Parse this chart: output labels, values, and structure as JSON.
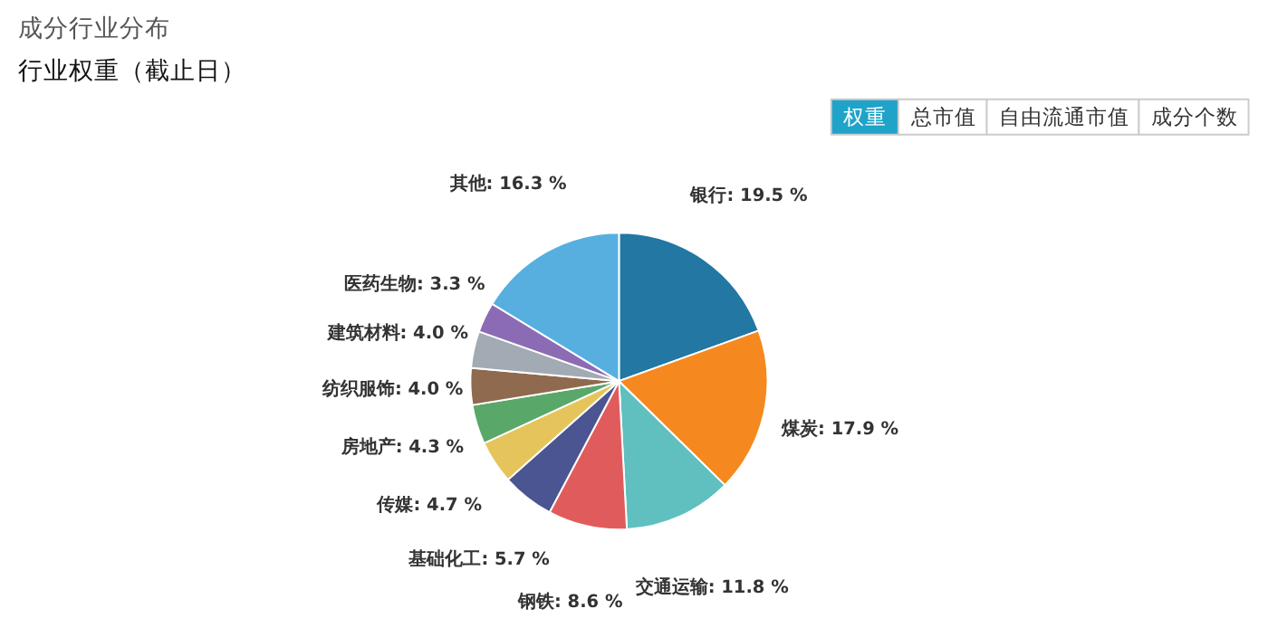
{
  "chart_data": {
    "type": "pie",
    "title": "成分行业分布",
    "subtitle": "行业权重（截止日）",
    "categories": [
      "银行",
      "煤炭",
      "交通运输",
      "钢铁",
      "基础化工",
      "传媒",
      "房地产",
      "纺织服饰",
      "建筑材料",
      "医药生物",
      "其他"
    ],
    "values": [
      19.5,
      17.9,
      11.8,
      8.6,
      5.7,
      4.7,
      4.3,
      4.0,
      4.0,
      3.3,
      16.3
    ],
    "value_labels": [
      "19.5 %",
      "17.9 %",
      "11.8 %",
      "8.6 %",
      "5.7 %",
      "4.7 %",
      "4.3 %",
      "4.0 %",
      "4.0 %",
      "3.3 %",
      "16.3 %"
    ],
    "colors": [
      "#2277a3",
      "#f5891f",
      "#5fc0bf",
      "#e05c5c",
      "#4a5591",
      "#e5c55b",
      "#5aa76a",
      "#8f6a4e",
      "#a2aab3",
      "#8c6bb5",
      "#56afdf"
    ],
    "annotations": [
      "权重",
      "总市值",
      "自由流通市值",
      "成分个数"
    ],
    "legend": false
  }
}
